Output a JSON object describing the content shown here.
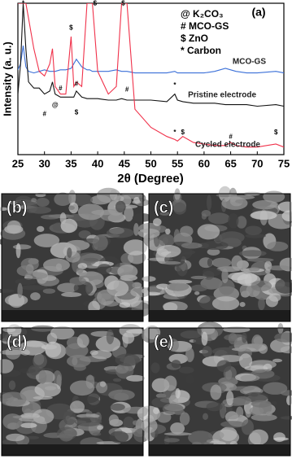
{
  "chart_data": {
    "type": "line",
    "panel_label": "(a)",
    "xlabel": "2θ (Degree)",
    "ylabel": "Intensity (a. u.)",
    "legend_lines": [
      "@ K₂CO₃",
      "# MCO-GS",
      "$ ZnO",
      "* Carbon"
    ],
    "xlim": [
      25,
      75
    ],
    "xticks": [
      25,
      30,
      35,
      40,
      45,
      50,
      55,
      60,
      65,
      70,
      75
    ],
    "ylim": [
      0,
      100
    ],
    "x": [
      25,
      25.5,
      26,
      26.5,
      27,
      28,
      29,
      30,
      31,
      31.5,
      32,
      33,
      34,
      35,
      35.5,
      36,
      37,
      38,
      38.5,
      39,
      40,
      42,
      43.5,
      44.5,
      45.5,
      47,
      50,
      53,
      54.5,
      55,
      56,
      58,
      60,
      62,
      64,
      65,
      66,
      68,
      70,
      73.5,
      75
    ],
    "series": [
      {
        "name": "MCO-GS",
        "color": "#3a6fd8",
        "values": [
          56,
          60,
          72,
          58,
          55,
          54,
          55,
          56,
          55,
          55,
          55,
          56,
          56,
          57,
          60,
          63,
          58,
          56,
          56,
          55,
          55,
          55,
          56,
          55,
          55,
          54,
          54,
          54,
          55,
          54,
          54,
          54,
          54,
          55,
          57,
          56,
          55,
          54,
          54,
          55,
          54
        ]
      },
      {
        "name": "Pristine electrode",
        "color": "#111111",
        "values": [
          40,
          60,
          100,
          70,
          48,
          44,
          44,
          40,
          42,
          48,
          40,
          38,
          38,
          38,
          38,
          42,
          38,
          37,
          37,
          37,
          37,
          36,
          36,
          37,
          36,
          36,
          36,
          35,
          40,
          36,
          35,
          34,
          34,
          34,
          33,
          33,
          33,
          33,
          32,
          33,
          32
        ]
      },
      {
        "name": "Cycled electrode",
        "color": "#f0314a",
        "values": [
          100,
          100,
          100,
          100,
          90,
          70,
          55,
          52,
          60,
          70,
          45,
          40,
          40,
          78,
          45,
          48,
          45,
          100,
          100,
          100,
          55,
          40,
          45,
          100,
          100,
          30,
          18,
          12,
          10,
          9,
          12,
          8,
          7,
          6,
          6,
          8,
          6,
          5,
          5,
          7,
          5
        ]
      }
    ],
    "peak_marks": [
      {
        "text": "*",
        "x": 26,
        "y": 97
      },
      {
        "text": "$",
        "x": 35,
        "y": 81
      },
      {
        "text": "$",
        "x": 39.5,
        "y": 97
      },
      {
        "text": "$",
        "x": 44.8,
        "y": 97
      },
      {
        "text": "#",
        "x": 33,
        "y": 41
      },
      {
        "text": "#",
        "x": 36,
        "y": 44
      },
      {
        "text": "#",
        "x": 45.5,
        "y": 40
      },
      {
        "text": "*",
        "x": 54.5,
        "y": 43
      },
      {
        "text": "#",
        "x": 30,
        "y": 24
      },
      {
        "text": "@",
        "x": 32,
        "y": 30
      },
      {
        "text": "$",
        "x": 36,
        "y": 25
      },
      {
        "text": "*",
        "x": 54.5,
        "y": 12
      },
      {
        "text": "$",
        "x": 56,
        "y": 12
      },
      {
        "text": "#",
        "x": 65,
        "y": 9
      },
      {
        "text": "$",
        "x": 73.5,
        "y": 12
      }
    ]
  },
  "images": [
    {
      "label": "(b)"
    },
    {
      "label": "(c)"
    },
    {
      "label": "(d)"
    },
    {
      "label": "(e)"
    }
  ]
}
